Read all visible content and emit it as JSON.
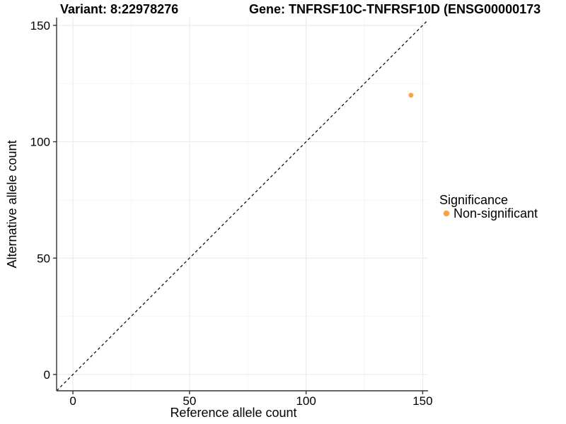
{
  "figure": {
    "background": "#FFFFFF"
  },
  "chart_data": {
    "type": "scatter",
    "title_left": "Variant: 8:22978276",
    "title_right": "Gene: TNFRSF10C-TNFRSF10D (ENSG00000173",
    "xlabel": "Reference allele count",
    "ylabel": "Alternative allele count",
    "x_ticks": [
      0,
      50,
      100,
      150
    ],
    "y_ticks": [
      0,
      50,
      100,
      150
    ],
    "x_minor_ticks": [
      25,
      75,
      125
    ],
    "y_minor_ticks": [
      25,
      75,
      125
    ],
    "xlim": [
      -7,
      152.3
    ],
    "ylim": [
      -7,
      153.3
    ],
    "grid": "major and minor gridlines on white background",
    "series": [
      {
        "name": "Non-significant",
        "color": "#F8A442",
        "points": [
          {
            "x": 145,
            "y": 120
          }
        ]
      }
    ],
    "reference_line": {
      "kind": "identity y=x",
      "style": "dashed",
      "color": "#000000"
    },
    "legend": {
      "title": "Significance",
      "position": "right",
      "items": [
        {
          "label": "Non-significant",
          "color": "#F8A442"
        }
      ]
    }
  },
  "colors": {
    "grid_major": "#EBEBEB",
    "grid_minor": "#F5F5F5",
    "axis_line": "#333333",
    "tick_mark": "#333333",
    "point": "#F8A442",
    "text": "#000000"
  }
}
